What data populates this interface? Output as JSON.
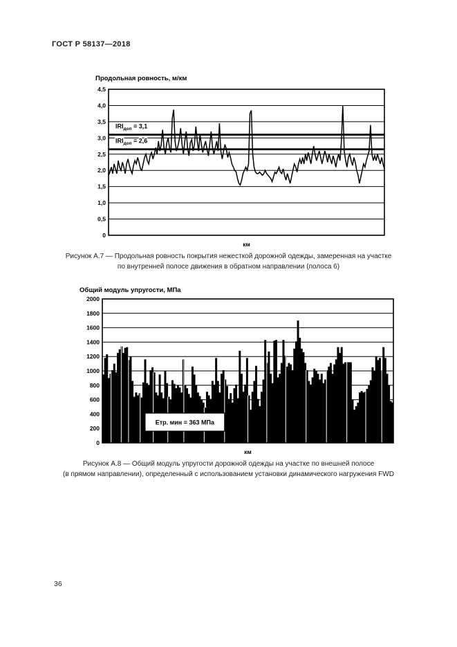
{
  "page": {
    "header": "ГОСТ Р 58137—2018",
    "page_number": "36"
  },
  "figures": [
    {
      "caption_lines": [
        "Рисунок А.7 — Продольная ровность покрытия нежесткой дорожной одежды, замеренная на участке",
        "по внутренней полосе движения в обратном направлении (полоса 6)"
      ]
    },
    {
      "caption_lines": [
        "Рисунок А.8 — Общий модуль упругости дорожной одежды на участке по внешней полосе",
        "(в прямом направлении), определенный с использованием установки динамического нагружения FWD"
      ]
    }
  ],
  "chart_data": [
    {
      "type": "line",
      "title": "Продольная ровность, м/км",
      "xlabel": "км",
      "ylabel": "",
      "ylim": [
        0,
        4.5
      ],
      "ytick_step": 0.5,
      "ytick_labels": [
        "0",
        "0,5",
        "1,0",
        "1,5",
        "2,0",
        "2,5",
        "3,0",
        "3,5",
        "4,0",
        "4,5"
      ],
      "grid": true,
      "legend": "none",
      "line_color": "#000000",
      "thresholds": [
        {
          "value": 3.1,
          "label_main": "IRI",
          "label_sub": "доп",
          "label_rest": " = 3,1",
          "label_x_frac": 0.025,
          "label_y": 3.3
        },
        {
          "value": 2.65,
          "label_main": "IRI",
          "label_sub": "доп",
          "label_rest": " = 2,6",
          "label_x_frac": 0.025,
          "label_y": 2.85
        }
      ],
      "values": [
        1.85,
        1.95,
        2.1,
        1.9,
        2.2,
        2.05,
        1.9,
        2.3,
        2.1,
        2.0,
        2.25,
        2.1,
        1.9,
        2.2,
        2.35,
        2.15,
        2.0,
        1.9,
        2.15,
        2.3,
        2.2,
        2.4,
        2.25,
        2.05,
        2.0,
        2.2,
        2.4,
        2.5,
        2.3,
        2.2,
        2.45,
        2.55,
        2.35,
        2.5,
        2.7,
        2.5,
        2.9,
        2.6,
        2.8,
        3.25,
        2.7,
        2.5,
        2.85,
        3.0,
        2.7,
        2.55,
        3.6,
        3.87,
        2.9,
        2.6,
        2.75,
        2.95,
        3.3,
        2.8,
        2.5,
        2.9,
        3.2,
        2.7,
        2.45,
        2.85,
        2.95,
        2.6,
        2.8,
        3.35,
        2.9,
        2.6,
        3.1,
        2.8,
        2.55,
        2.75,
        2.9,
        2.65,
        2.45,
        2.8,
        3.2,
        2.7,
        2.5,
        2.7,
        2.9,
        2.6,
        3.45,
        2.6,
        2.35,
        2.6,
        2.8,
        2.65,
        2.4,
        2.55,
        2.4,
        2.2,
        2.1,
        2.0,
        1.95,
        1.75,
        1.6,
        1.55,
        1.7,
        1.9,
        2.0,
        2.1,
        2.0,
        2.2,
        3.75,
        3.85,
        2.5,
        2.1,
        1.95,
        1.9,
        1.9,
        1.95,
        1.9,
        1.85,
        1.9,
        2.0,
        1.9,
        1.85,
        1.8,
        1.75,
        1.65,
        1.8,
        1.95,
        1.9,
        2.0,
        2.1,
        1.95,
        1.9,
        2.05,
        1.85,
        1.7,
        1.9,
        1.75,
        1.6,
        1.8,
        2.0,
        2.2,
        2.1,
        1.95,
        2.2,
        2.35,
        2.2,
        2.4,
        2.2,
        2.5,
        2.3,
        2.55,
        2.4,
        2.2,
        2.5,
        2.75,
        2.5,
        2.3,
        2.45,
        2.6,
        2.4,
        2.2,
        2.4,
        2.6,
        2.45,
        2.25,
        2.5,
        2.35,
        2.2,
        2.45,
        2.3,
        2.1,
        2.35,
        2.5,
        2.3,
        2.9,
        4.0,
        2.6,
        2.3,
        2.1,
        2.4,
        2.5,
        2.3,
        2.15,
        2.4,
        2.25,
        2.0,
        1.85,
        1.6,
        1.8,
        2.0,
        2.2,
        2.1,
        2.3,
        2.45,
        2.6,
        3.4,
        2.5,
        2.3,
        2.45,
        2.3,
        2.5,
        2.35,
        2.2,
        2.4,
        2.2,
        2.05
      ]
    },
    {
      "type": "bar",
      "title": "Общий модуль упругости, МПа",
      "xlabel": "км",
      "ylabel": "",
      "ylim": [
        0,
        2000
      ],
      "ytick_step": 200,
      "ytick_labels": [
        "0",
        "200",
        "400",
        "600",
        "800",
        "1000",
        "1200",
        "1400",
        "1600",
        "1800",
        "2000"
      ],
      "grid": true,
      "legend": "none",
      "bar_color": "#000000",
      "annotation": {
        "text": "Етр. мин = 363 МПа",
        "x_frac": 0.147,
        "width_frac": 0.273,
        "y_top_value": 413,
        "height_value": 250
      },
      "separator_fractions": [
        0.03,
        0.065,
        0.09,
        0.13,
        0.175,
        0.225,
        0.28,
        0.35,
        0.42,
        0.5,
        0.565,
        0.63,
        0.7,
        0.77,
        0.84,
        0.905,
        0.96
      ],
      "values": [
        950,
        1180,
        1230,
        900,
        960,
        1010,
        1100,
        980,
        1250,
        1300,
        1340,
        1250,
        1320,
        1330,
        1150,
        1200,
        860,
        640,
        700,
        660,
        690,
        630,
        840,
        1160,
        830,
        800,
        1010,
        1050,
        980,
        700,
        660,
        950,
        700,
        620,
        1000,
        830,
        640,
        600,
        870,
        820,
        760,
        800,
        770,
        700,
        1160,
        800,
        760,
        680,
        630,
        1060,
        950,
        800,
        700,
        650,
        600,
        560,
        490,
        710,
        660,
        610,
        860,
        810,
        1180,
        860,
        700,
        960,
        1010,
        880,
        790,
        610,
        690,
        560,
        760,
        810,
        620,
        1280,
        960,
        710,
        810,
        1180,
        660,
        460,
        710,
        860,
        1070,
        610,
        510,
        710,
        880,
        1430,
        1110,
        1270,
        960,
        830,
        1420,
        1430,
        910,
        960,
        1110,
        1430,
        1210,
        1060,
        1110,
        1090,
        1010,
        1310,
        1410,
        1700,
        1460,
        1310,
        1260,
        1110,
        1010,
        860,
        810,
        910,
        1030,
        1000,
        960,
        880,
        960,
        830,
        880,
        1010,
        1060,
        1110,
        960,
        1090,
        1160,
        1330,
        1250,
        1330,
        1100,
        1120,
        1120,
        1120,
        1120,
        600,
        460,
        510,
        560,
        700,
        720,
        700,
        710,
        750,
        800,
        870,
        1050,
        1000,
        1200,
        1150,
        1180,
        1000,
        1330,
        1180,
        960,
        800,
        580,
        560
      ]
    }
  ]
}
